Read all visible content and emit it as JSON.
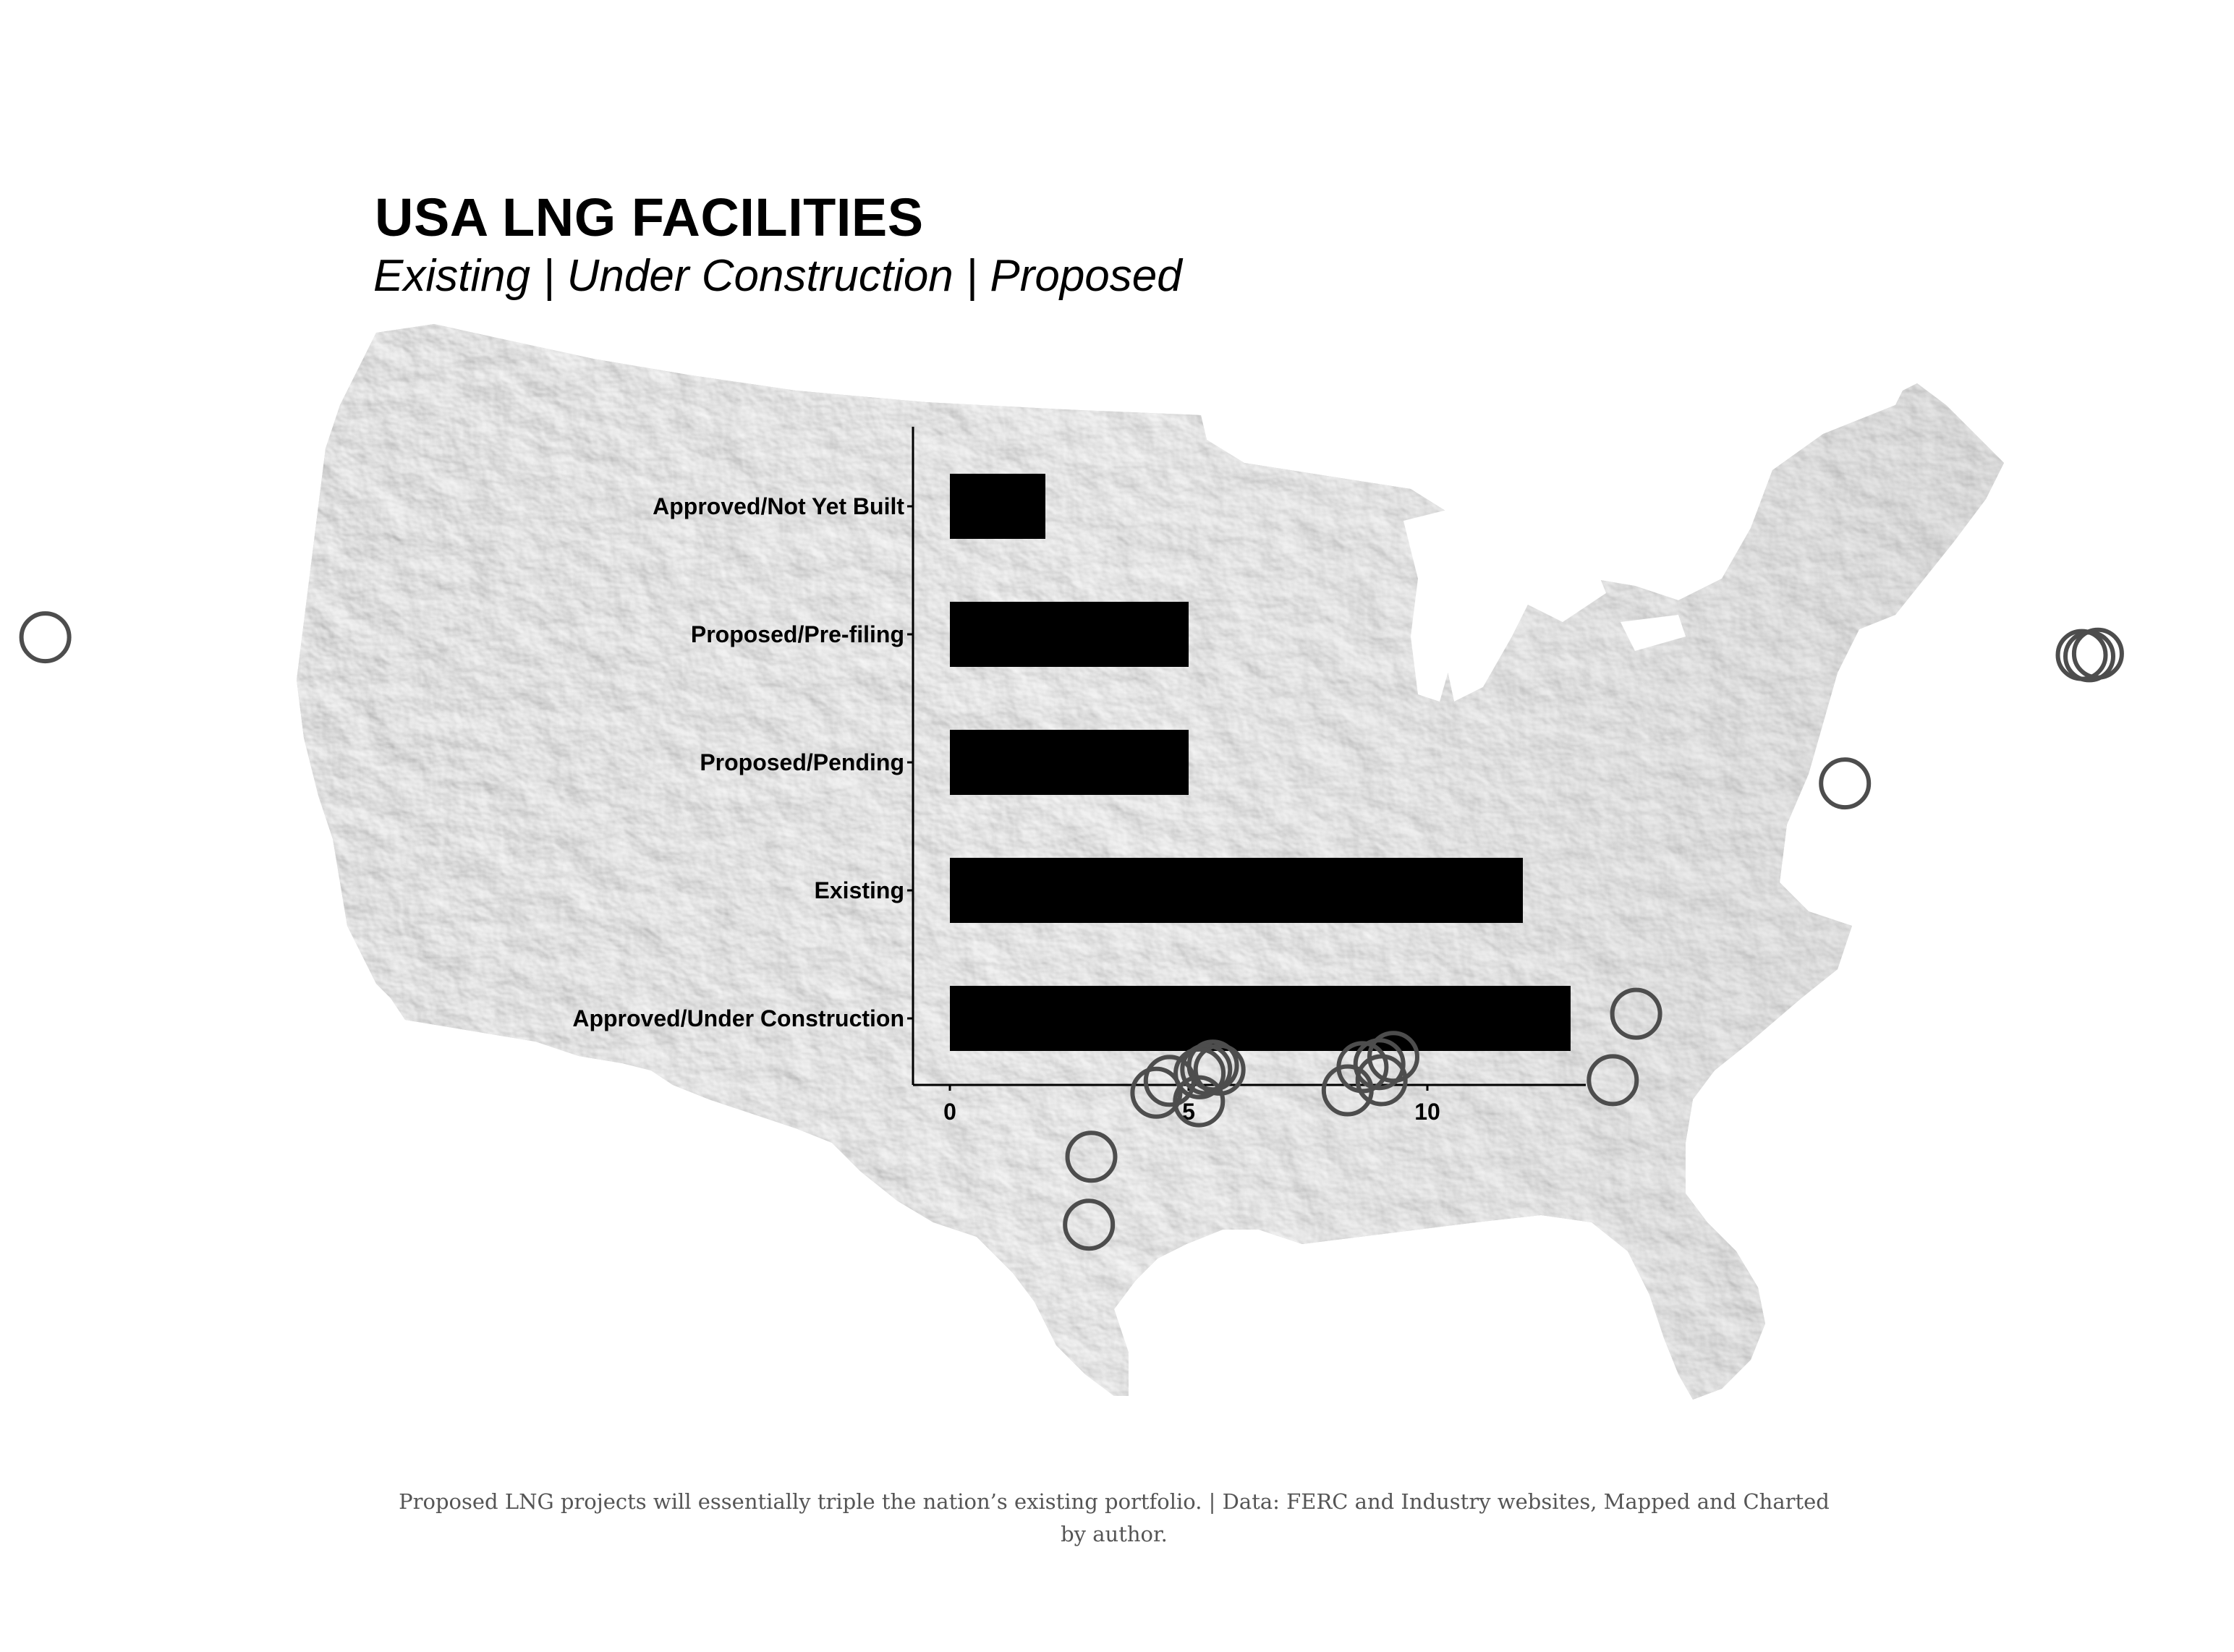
{
  "title": "USA LNG FACILITIES",
  "subtitle": "Existing | Under Construction | Proposed",
  "caption": "Proposed LNG projects will essentially triple the nation’s existing portfolio. | Data: FERC and Industry websites, Mapped and Charted by author.",
  "map": {
    "background_map": "contiguous United States shaded relief, greyscale",
    "land_color": "#c9c9c9",
    "marker_color": "#4d4d4d",
    "marker_style": "hollow circle",
    "markers": [
      {
        "lon": -124.2,
        "lat": 43.4
      },
      {
        "lon": -71.0,
        "lat": 42.4
      },
      {
        "lon": -70.8,
        "lat": 42.4
      },
      {
        "lon": -70.6,
        "lat": 42.5
      },
      {
        "lon": -76.4,
        "lat": 38.4
      },
      {
        "lon": -81.1,
        "lat": 32.1
      },
      {
        "lon": -81.5,
        "lat": 30.4
      },
      {
        "lon": -88.1,
        "lat": 30.5
      },
      {
        "lon": -88.5,
        "lat": 30.3
      },
      {
        "lon": -89.0,
        "lat": 30.2
      },
      {
        "lon": -88.4,
        "lat": 29.9
      },
      {
        "lon": -89.4,
        "lat": 29.6
      },
      {
        "lon": -93.3,
        "lat": 30.0
      },
      {
        "lon": -93.5,
        "lat": 30.1
      },
      {
        "lon": -93.7,
        "lat": 30.0
      },
      {
        "lon": -93.9,
        "lat": 29.9
      },
      {
        "lon": -94.8,
        "lat": 29.7
      },
      {
        "lon": -95.2,
        "lat": 29.4
      },
      {
        "lon": -93.9,
        "lat": 29.2
      },
      {
        "lon": -97.2,
        "lat": 27.8
      },
      {
        "lon": -97.3,
        "lat": 26.1
      }
    ]
  },
  "chart_data": {
    "type": "bar",
    "orientation": "horizontal",
    "categories": [
      "Approved/Not Yet Built",
      "Proposed/Pre-filing",
      "Proposed/Pending",
      "Existing",
      "Approved/Under Construction"
    ],
    "values": [
      2,
      5,
      5,
      12,
      13
    ],
    "xticks": [
      "0",
      "5",
      "10"
    ],
    "xlim": [
      0,
      13.5
    ],
    "bar_color": "#000000",
    "xlabel": "",
    "ylabel": ""
  }
}
